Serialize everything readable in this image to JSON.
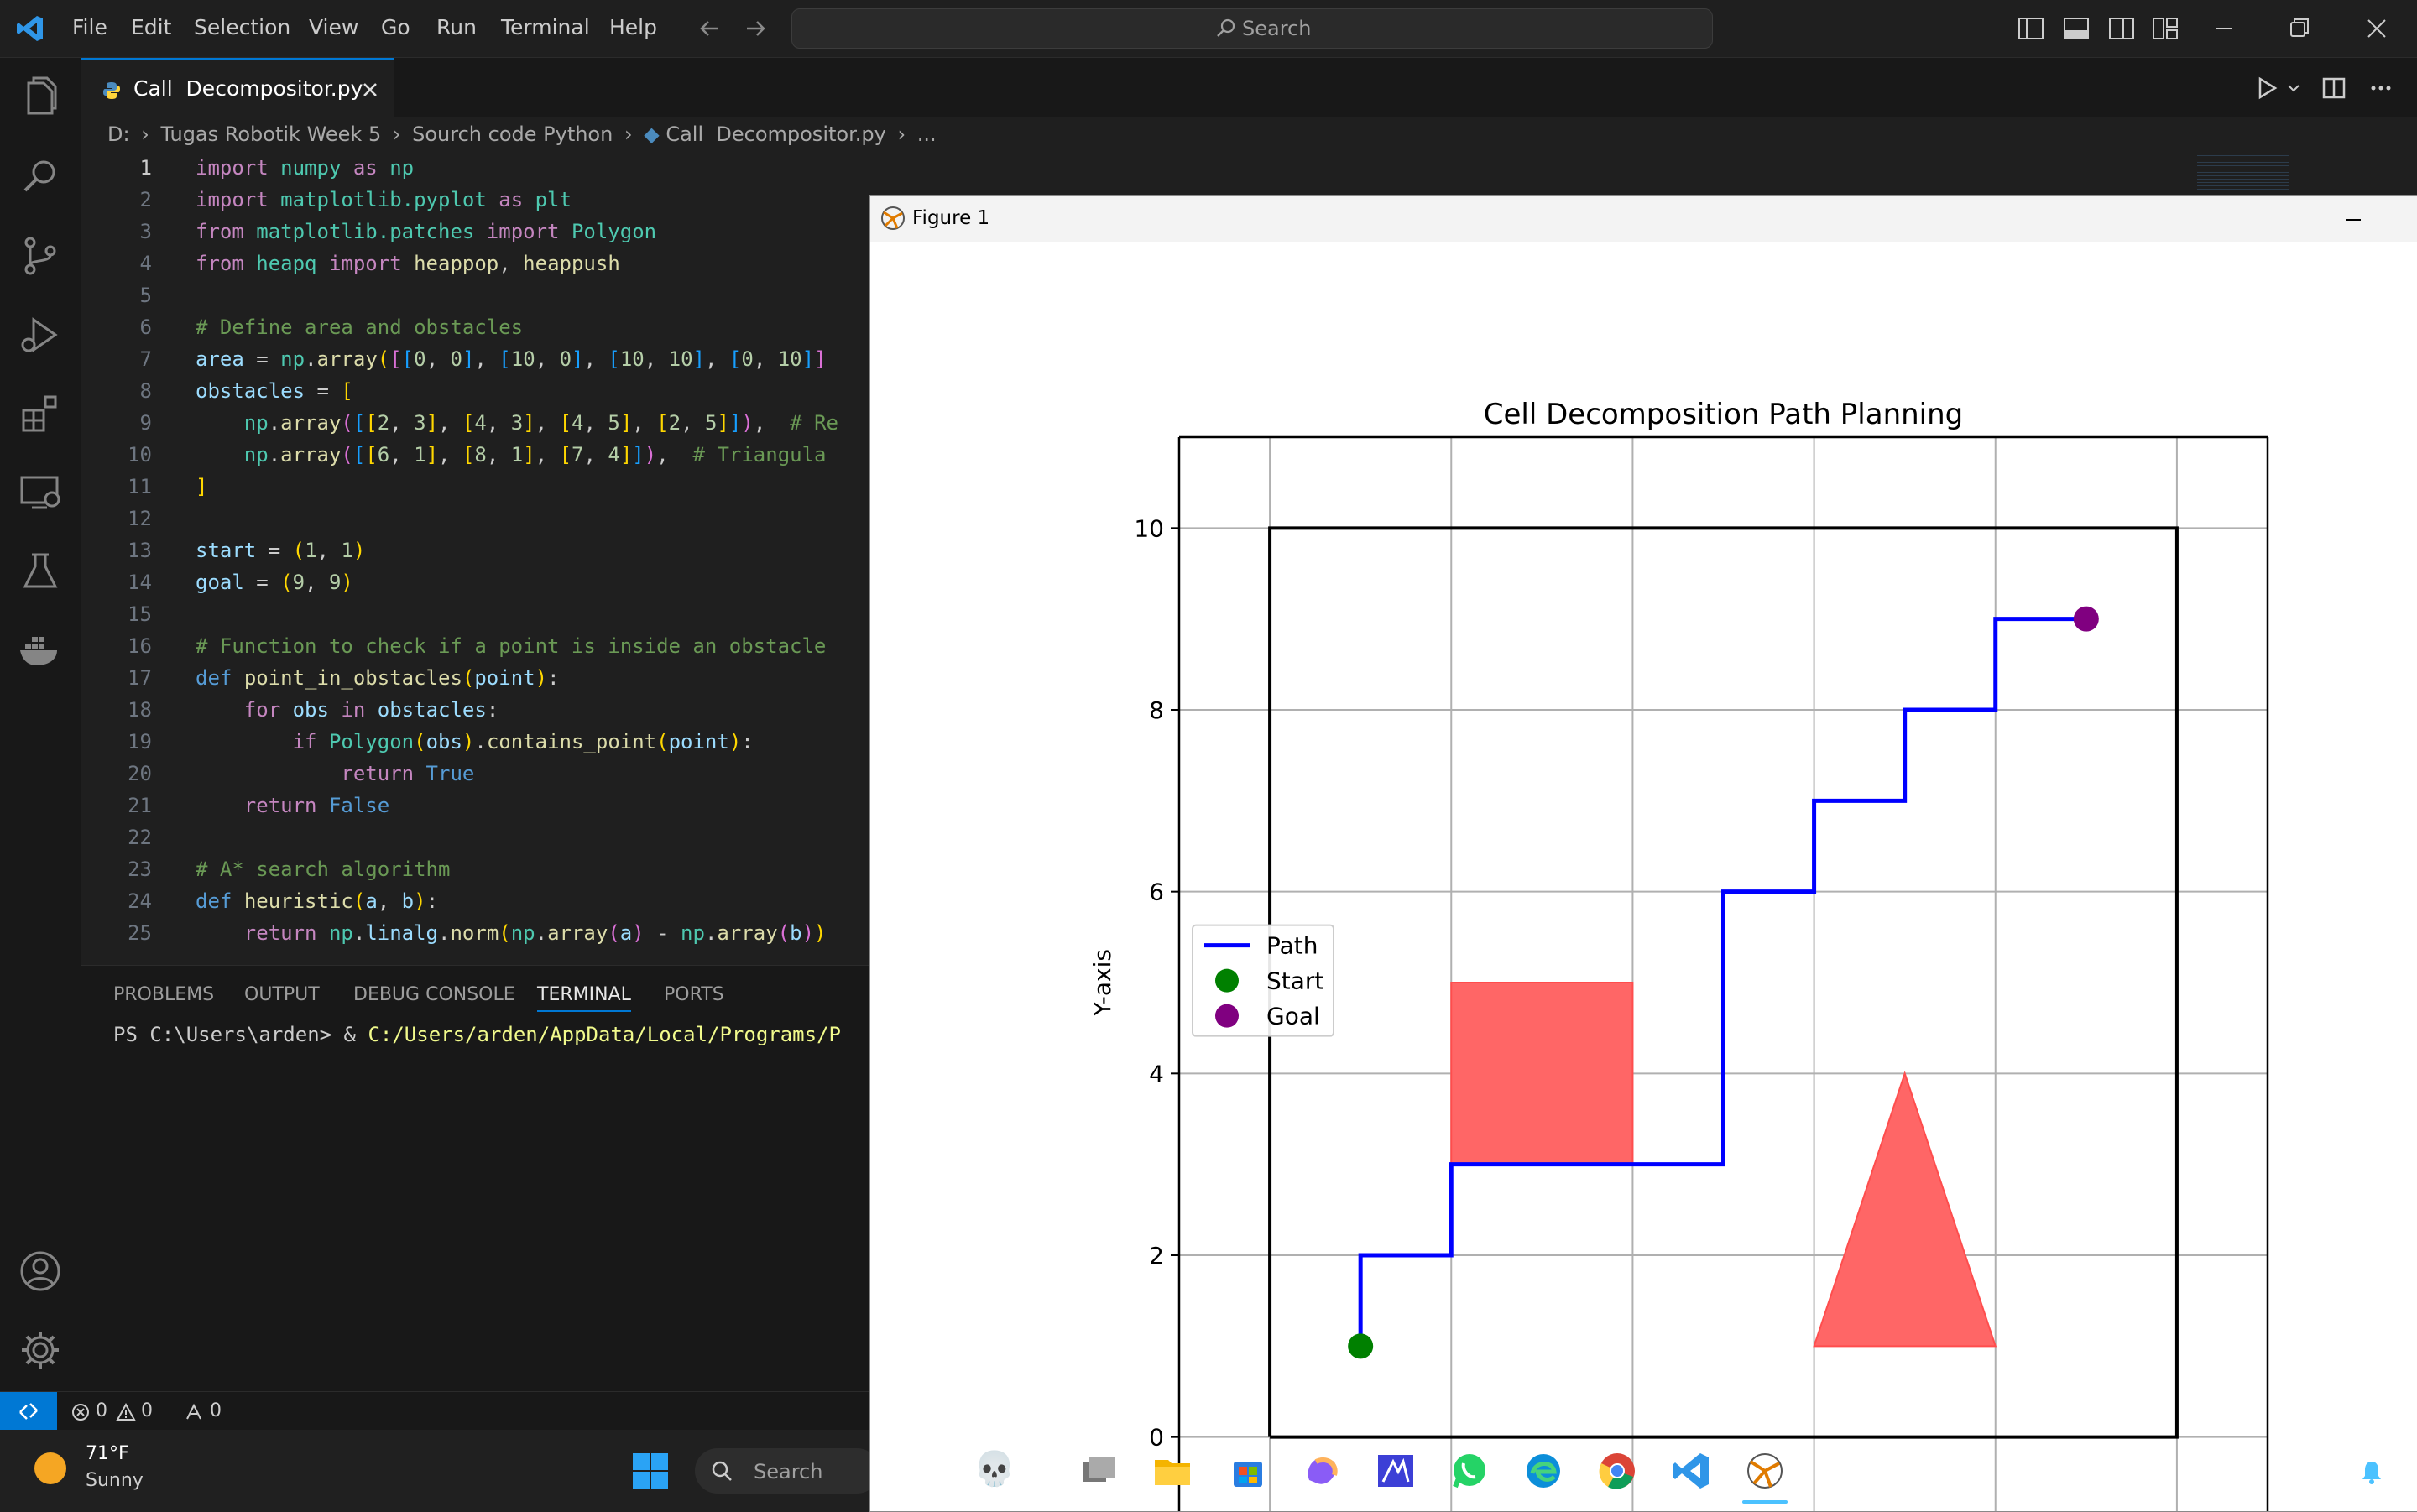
{
  "menu": [
    "File",
    "Edit",
    "Selection",
    "View",
    "Go",
    "Run",
    "Terminal",
    "Help"
  ],
  "search": {
    "label": "Search"
  },
  "tab": {
    "label": "Call  Decompositor.py"
  },
  "breadcrumb": {
    "drive": "D:",
    "folder1": "Tugas Robotik Week 5",
    "folder2": "Sourch code Python",
    "file": "Call  Decompositor.py",
    "more": "..."
  },
  "line_numbers": [
    "1",
    "2",
    "3",
    "4",
    "5",
    "6",
    "7",
    "8",
    "9",
    "10",
    "11",
    "12",
    "13",
    "14",
    "15",
    "16",
    "17",
    "18",
    "19",
    "20",
    "21",
    "22",
    "23",
    "24",
    "25"
  ],
  "panel": {
    "tabs": [
      "PROBLEMS",
      "OUTPUT",
      "DEBUG CONSOLE",
      "TERMINAL",
      "PORTS"
    ],
    "active_tab": "TERMINAL",
    "prompt": "PS C:\\Users\\arden> ",
    "command_amp": "& ",
    "command_path": "C:/Users/arden/AppData/Local/Programs/P"
  },
  "status": {
    "errors": "0",
    "warnings": "0",
    "ports": "0"
  },
  "figure": {
    "window_title": "Figure 1"
  },
  "chart_data": {
    "type": "line",
    "title": "Cell Decomposition Path Planning",
    "xlabel": "",
    "ylabel": "Y-axis",
    "xlim": [
      -1,
      11
    ],
    "ylim": [
      -1,
      11
    ],
    "y_ticks": [
      0,
      2,
      4,
      6,
      8,
      10
    ],
    "grid": true,
    "legend": "center-left",
    "area_boundary": [
      [
        0,
        0
      ],
      [
        10,
        0
      ],
      [
        10,
        10
      ],
      [
        0,
        10
      ],
      [
        0,
        0
      ]
    ],
    "obstacles": [
      {
        "shape": "rectangle",
        "points": [
          [
            2,
            3
          ],
          [
            4,
            3
          ],
          [
            4,
            5
          ],
          [
            2,
            5
          ]
        ],
        "color": "#ff6666"
      },
      {
        "shape": "triangle",
        "points": [
          [
            6,
            1
          ],
          [
            8,
            1
          ],
          [
            7,
            4
          ]
        ],
        "color": "#ff6666"
      }
    ],
    "series": [
      {
        "name": "Path",
        "color": "#0000ff",
        "points": [
          [
            1,
            1
          ],
          [
            1,
            2
          ],
          [
            2,
            2
          ],
          [
            2,
            3
          ],
          [
            3,
            3
          ],
          [
            4,
            3
          ],
          [
            5,
            3
          ],
          [
            5,
            4
          ],
          [
            5,
            5
          ],
          [
            5,
            6
          ],
          [
            6,
            6
          ],
          [
            6,
            7
          ],
          [
            7,
            7
          ],
          [
            7,
            8
          ],
          [
            8,
            8
          ],
          [
            8,
            9
          ],
          [
            9,
            9
          ]
        ]
      },
      {
        "name": "Start",
        "color": "#008000",
        "points": [
          [
            1,
            1
          ]
        ]
      },
      {
        "name": "Goal",
        "color": "#800080",
        "points": [
          [
            9,
            9
          ]
        ]
      }
    ]
  },
  "taskbar": {
    "temperature": "71°F",
    "condition": "Sunny",
    "search": "Search"
  }
}
